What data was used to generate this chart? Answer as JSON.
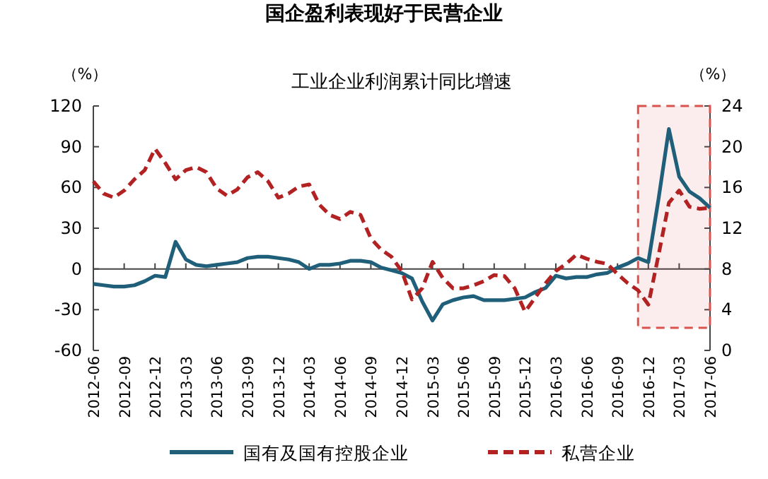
{
  "chart_data": {
    "type": "line",
    "title": "国企盈利表现好于民营企业",
    "subtitle": "工业企业利润累计同比增速",
    "ylabel": "（%）",
    "y2label": "（%）",
    "x": [
      "2012-06",
      "2012-07",
      "2012-08",
      "2012-09",
      "2012-10",
      "2012-11",
      "2012-12",
      "2013-01",
      "2013-02",
      "2013-03",
      "2013-04",
      "2013-05",
      "2013-06",
      "2013-07",
      "2013-08",
      "2013-09",
      "2013-10",
      "2013-11",
      "2013-12",
      "2014-01",
      "2014-02",
      "2014-03",
      "2014-04",
      "2014-05",
      "2014-06",
      "2014-07",
      "2014-08",
      "2014-09",
      "2014-10",
      "2014-11",
      "2014-12",
      "2015-01",
      "2015-02",
      "2015-03",
      "2015-04",
      "2015-05",
      "2015-06",
      "2015-07",
      "2015-08",
      "2015-09",
      "2015-10",
      "2015-11",
      "2015-12",
      "2016-01",
      "2016-02",
      "2016-03",
      "2016-04",
      "2016-05",
      "2016-06",
      "2016-07",
      "2016-08",
      "2016-09",
      "2016-10",
      "2016-11",
      "2016-12",
      "2017-01",
      "2017-02",
      "2017-03",
      "2017-04",
      "2017-05",
      "2017-06"
    ],
    "series": [
      {
        "name": "国有及国有控股企业",
        "color": "#1f5f7a",
        "line_style": "solid",
        "values": [
          -11,
          -12,
          -13,
          -13,
          -12,
          -9,
          -5,
          -6,
          20,
          7,
          3,
          2,
          3,
          4,
          5,
          8,
          9,
          9,
          8,
          7,
          5,
          0,
          3,
          3,
          4,
          6,
          6,
          5,
          1,
          -1,
          -3,
          -7,
          -24,
          -38,
          -26,
          -23,
          -21,
          -20,
          -23,
          -23,
          -23,
          -22,
          -21,
          -17,
          -14,
          -5,
          -7,
          -6,
          -6,
          -4,
          -3,
          1,
          4,
          8,
          5,
          52,
          103,
          68,
          57,
          52,
          45
        ]
      },
      {
        "name": "私营企业",
        "color": "#b22222",
        "line_style": "dashed",
        "axis": "y2",
        "values": [
          16.6,
          15.4,
          15,
          15.7,
          16.8,
          17.7,
          19.8,
          18.4,
          16.8,
          17.7,
          18,
          17.5,
          15.9,
          15.2,
          15.8,
          17,
          17.5,
          16.6,
          15,
          15.4,
          16.1,
          16.3,
          14.3,
          13.3,
          12.9,
          13.6,
          13.3,
          11,
          9.9,
          9.2,
          7.8,
          5,
          6.1,
          8.7,
          7.1,
          6.1,
          6.1,
          6.4,
          6.8,
          7.4,
          7.3,
          6.1,
          3.8,
          5.2,
          6.6,
          7.8,
          8.5,
          9.4,
          9,
          8.7,
          8.5,
          7.5,
          6.6,
          5.9,
          4.5,
          9.4,
          14.5,
          15.7,
          14.1,
          13.9,
          14
        ]
      }
    ],
    "xlim": [
      "2012-06",
      "2017-06"
    ],
    "xticks": [
      "2012-06",
      "2012-09",
      "2012-12",
      "2013-03",
      "2013-06",
      "2013-09",
      "2013-12",
      "2014-03",
      "2014-06",
      "2014-09",
      "2014-12",
      "2015-03",
      "2015-06",
      "2015-09",
      "2015-12",
      "2016-03",
      "2016-06",
      "2016-09",
      "2016-12",
      "2017-03",
      "2017-06"
    ],
    "ylim": [
      -60,
      120
    ],
    "yticks": [
      -60,
      -30,
      0,
      30,
      60,
      90,
      120
    ],
    "y2lim": [
      0,
      24
    ],
    "y2ticks": [
      0,
      4,
      8,
      12,
      16,
      20,
      24
    ],
    "bands": [
      {
        "axis": "x",
        "from": "2016-11",
        "to": "2017-06",
        "color": "#d9534f"
      }
    ],
    "legend": "bottom",
    "marker": "none"
  }
}
